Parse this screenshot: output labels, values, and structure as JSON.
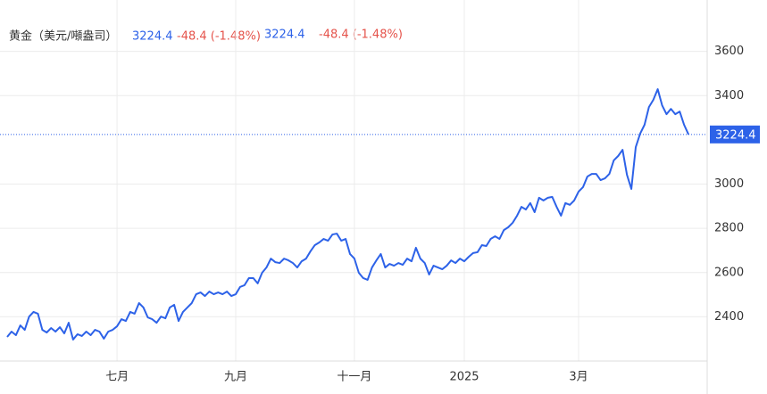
{
  "chart_data": {
    "type": "line",
    "header": {
      "name": "黄金（美元/噸盎司）",
      "last": "3224.4",
      "change": "-48.4 (-1.48%)"
    },
    "last_price": 3224.4,
    "series": [
      {
        "color": "#2d62e8",
        "values": [
          2309,
          2333,
          2317,
          2361,
          2341,
          2401,
          2422,
          2414,
          2341,
          2329,
          2349,
          2333,
          2353,
          2325,
          2373,
          2297,
          2321,
          2313,
          2333,
          2317,
          2341,
          2333,
          2301,
          2333,
          2341,
          2357,
          2389,
          2381,
          2422,
          2414,
          2462,
          2442,
          2397,
          2389,
          2373,
          2401,
          2393,
          2442,
          2454,
          2381,
          2422,
          2442,
          2462,
          2502,
          2510,
          2494,
          2514,
          2502,
          2510,
          2502,
          2514,
          2494,
          2502,
          2535,
          2543,
          2575,
          2575,
          2551,
          2599,
          2623,
          2663,
          2647,
          2643,
          2663,
          2655,
          2643,
          2623,
          2651,
          2663,
          2696,
          2724,
          2736,
          2752,
          2744,
          2772,
          2776,
          2744,
          2752,
          2684,
          2663,
          2599,
          2575,
          2567,
          2623,
          2655,
          2684,
          2623,
          2639,
          2631,
          2643,
          2635,
          2663,
          2651,
          2712,
          2663,
          2643,
          2591,
          2631,
          2623,
          2615,
          2631,
          2655,
          2643,
          2663,
          2651,
          2671,
          2688,
          2692,
          2724,
          2720,
          2752,
          2764,
          2752,
          2792,
          2805,
          2825,
          2857,
          2897,
          2885,
          2914,
          2873,
          2938,
          2926,
          2938,
          2942,
          2897,
          2857,
          2914,
          2906,
          2926,
          2966,
          2986,
          3034,
          3046,
          3046,
          3018,
          3026,
          3046,
          3107,
          3127,
          3155,
          3042,
          2978,
          3167,
          3228,
          3268,
          3348,
          3381,
          3429,
          3356,
          3316,
          3340,
          3316,
          3328,
          3268,
          3224.4
        ]
      }
    ],
    "xlim": [
      0,
      156
    ],
    "xticks": [
      {
        "value": 25,
        "label": "七月"
      },
      {
        "value": 52,
        "label": "九月"
      },
      {
        "value": 79,
        "label": "十一月"
      },
      {
        "value": 104,
        "label": "2025"
      },
      {
        "value": 130,
        "label": "3月"
      }
    ],
    "ylim": [
      2200,
      3800
    ],
    "yticks": [
      2400,
      2600,
      2800,
      3000,
      3400,
      3600
    ],
    "grid": true
  }
}
